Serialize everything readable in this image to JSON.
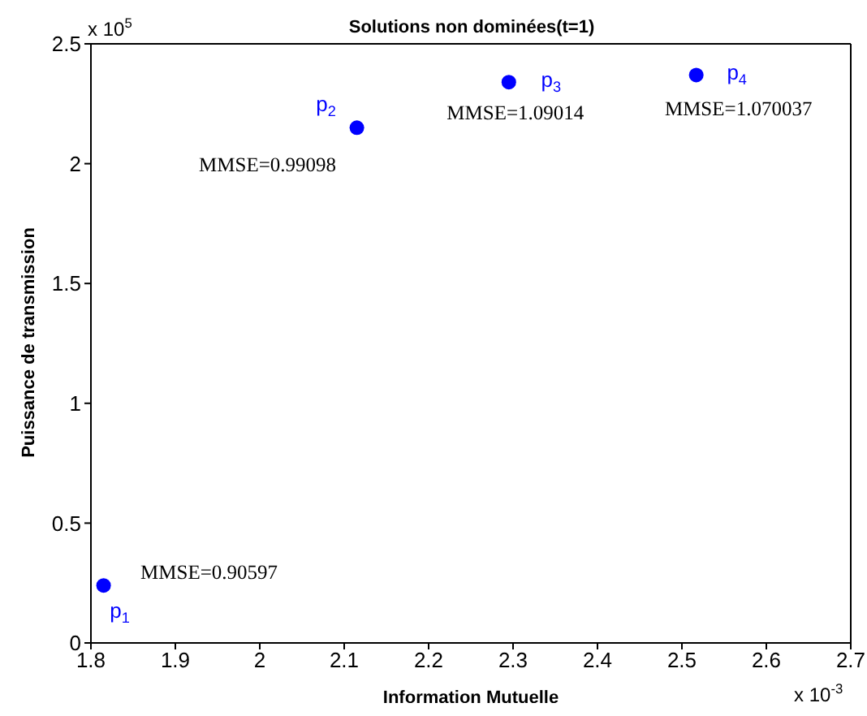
{
  "chart_data": {
    "type": "scatter",
    "title": "Solutions non dominées(t=1)",
    "xlabel": "Information Mutuelle",
    "ylabel": "Puissance de transmission",
    "x": [
      1.815,
      2.115,
      2.295,
      2.517
    ],
    "series": [
      {
        "color": "#0000ff",
        "values": [
          0.24,
          2.15,
          2.34,
          2.37
        ]
      }
    ],
    "xlim": [
      1.8,
      2.7
    ],
    "xticks": [
      1.8,
      1.9,
      2,
      2.1,
      2.2,
      2.3,
      2.4,
      2.5,
      2.6,
      2.7
    ],
    "ylim": [
      0,
      2.5
    ],
    "yticks": [
      0,
      0.5,
      1,
      1.5,
      2,
      2.5
    ],
    "legend": false,
    "marker": "circle",
    "annotations": [
      "x 10$^{5}$",
      "x 10$^{-3}$",
      {
        "text": "p$_{1}$",
        "x": 1.815,
        "y": 0.24
      },
      {
        "text": "MMSE=0.90597",
        "x": 1.815,
        "y": 0.24
      },
      {
        "text": "p$_{2}$",
        "x": 2.115,
        "y": 2.15
      },
      {
        "text": "MMSE=0.99098",
        "x": 2.115,
        "y": 2.15
      },
      {
        "text": "p$_{3}$",
        "x": 2.295,
        "y": 2.34
      },
      {
        "text": "MMSE=1.09014",
        "x": 2.295,
        "y": 2.34
      },
      {
        "text": "p$_{4}$",
        "x": 2.517,
        "y": 2.37
      },
      {
        "text": "MMSE=1.070037",
        "x": 2.517,
        "y": 2.37
      }
    ]
  }
}
